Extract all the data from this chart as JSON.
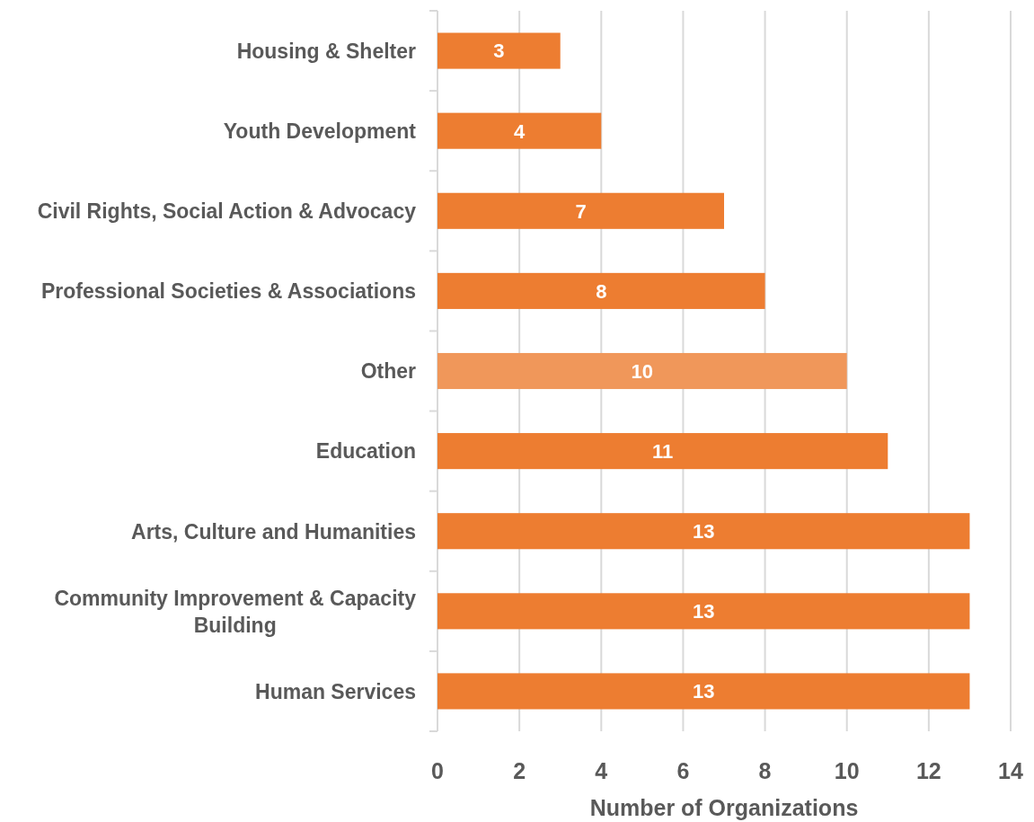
{
  "chart_data": {
    "type": "bar",
    "orientation": "horizontal",
    "xlabel": "Number of Organizations",
    "categories": [
      "Housing & Shelter",
      "Youth Development",
      "Civil Rights, Social Action & Advocacy",
      "Professional Societies & Associations",
      "Other",
      "Education",
      "Arts, Culture and Humanities",
      "Community Improvement & Capacity Building",
      "Human Services"
    ],
    "values": [
      3,
      4,
      7,
      8,
      10,
      11,
      13,
      13,
      13
    ],
    "colors": [
      "#ed7d31",
      "#ed7d31",
      "#ed7d31",
      "#ed7d31",
      "#f0975a",
      "#ed7d31",
      "#ed7d31",
      "#ed7d31",
      "#ed7d31"
    ],
    "xlim": [
      0,
      14
    ],
    "xticks": [
      0,
      2,
      4,
      6,
      8,
      10,
      12,
      14
    ],
    "grid": "x",
    "data_labels": true
  }
}
